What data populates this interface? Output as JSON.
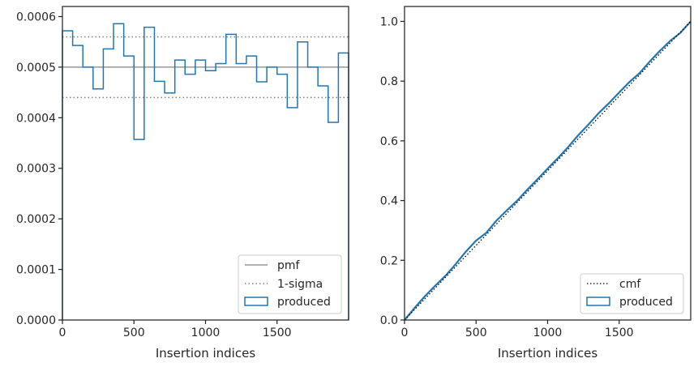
{
  "chart_data": [
    {
      "type": "histogram",
      "xlabel": "Insertion indices",
      "ylabel": "",
      "xlim": [
        0,
        2000
      ],
      "ylim": [
        0,
        0.00062
      ],
      "xticks": [
        0,
        500,
        1000,
        1500
      ],
      "xtick_labels": [
        "0",
        "500",
        "1000",
        "1500"
      ],
      "yticks": [
        0,
        0.0001,
        0.0002,
        0.0003,
        0.0004,
        0.0005,
        0.0006
      ],
      "ytick_labels": [
        "0.0000",
        "0.0001",
        "0.0002",
        "0.0003",
        "0.0004",
        "0.0005",
        "0.0006"
      ],
      "legend_position": "bottom-right",
      "bin_edges": [
        0,
        71.4,
        142.9,
        214.3,
        285.7,
        357.1,
        428.6,
        500,
        571.4,
        642.9,
        714.3,
        785.7,
        857.1,
        928.6,
        1000,
        1071.4,
        1142.9,
        1214.3,
        1285.7,
        1357.1,
        1428.6,
        1500,
        1571.4,
        1642.9,
        1714.3,
        1785.7,
        1857.1,
        1928.6,
        2000
      ],
      "series": [
        {
          "name": "produced",
          "style": "step",
          "color": "#1f77b4",
          "values": [
            0.000572,
            0.000543,
            0.0005,
            0.000457,
            0.000536,
            0.000586,
            0.000522,
            0.000357,
            0.000579,
            0.000472,
            0.000449,
            0.000514,
            0.000486,
            0.000514,
            0.000493,
            0.000507,
            0.000565,
            0.000507,
            0.000522,
            0.000471,
            0.0005,
            0.000486,
            0.00042,
            0.00055,
            0.0005,
            0.000463,
            0.000391,
            0.000528
          ]
        },
        {
          "name": "pmf",
          "style": "solid",
          "color": "#808080",
          "y": 0.0005
        },
        {
          "name": "1-sigma",
          "style": "dotted",
          "color": "#808080",
          "y": [
            0.00044,
            0.00056
          ]
        }
      ]
    },
    {
      "type": "line",
      "xlabel": "Insertion indices",
      "ylabel": "",
      "xlim": [
        0,
        2000
      ],
      "ylim": [
        0,
        1.05
      ],
      "xticks": [
        0,
        500,
        1000,
        1500
      ],
      "xtick_labels": [
        "0",
        "500",
        "1000",
        "1500"
      ],
      "yticks": [
        0,
        0.2,
        0.4,
        0.6,
        0.8,
        1.0
      ],
      "ytick_labels": [
        "0.0",
        "0.2",
        "0.4",
        "0.6",
        "0.8",
        "1.0"
      ],
      "legend_position": "bottom-right",
      "series": [
        {
          "name": "cmf",
          "style": "dotted",
          "color": "#000000",
          "x": [
            0,
            2000
          ],
          "y": [
            0,
            1.0
          ]
        },
        {
          "name": "produced",
          "style": "step",
          "color": "#1f77b4",
          "x": [
            0,
            71.4,
            142.9,
            214.3,
            285.7,
            357.1,
            428.6,
            500,
            571.4,
            642.9,
            714.3,
            785.7,
            857.1,
            928.6,
            1000,
            1071.4,
            1142.9,
            1214.3,
            1285.7,
            1357.1,
            1428.6,
            1500,
            1571.4,
            1642.9,
            1714.3,
            1785.7,
            1857.1,
            1928.6,
            2000
          ],
          "y": [
            0,
            0.041,
            0.08,
            0.115,
            0.148,
            0.187,
            0.229,
            0.266,
            0.292,
            0.333,
            0.367,
            0.399,
            0.436,
            0.471,
            0.507,
            0.542,
            0.579,
            0.619,
            0.655,
            0.693,
            0.726,
            0.762,
            0.797,
            0.827,
            0.866,
            0.902,
            0.935,
            0.962,
            1.0
          ]
        }
      ]
    }
  ]
}
